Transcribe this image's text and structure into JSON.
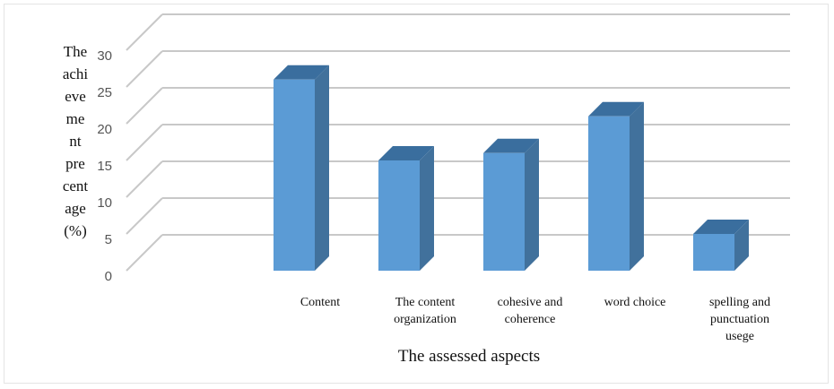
{
  "chart_data": {
    "type": "bar",
    "title": "",
    "xlabel": "The assessed aspects",
    "ylabel_lines": [
      "The",
      "achi",
      "eve",
      "me",
      "nt",
      "pre",
      "cent",
      "age",
      "(%)"
    ],
    "yticks": [
      "0",
      "5",
      "10",
      "15",
      "20",
      "25",
      "30"
    ],
    "ylim": [
      0,
      30
    ],
    "grid": true,
    "style": "3d-column",
    "categories": [
      [
        "Content"
      ],
      [
        "The content",
        "organization"
      ],
      [
        "cohesive and",
        "coherence"
      ],
      [
        "word choice"
      ],
      [
        "spelling and",
        "punctuation",
        "usege"
      ]
    ],
    "values": [
      26,
      15,
      16,
      21,
      5
    ],
    "colors": {
      "front": "#5b9bd5",
      "side": "#41719c",
      "top": "#3a6e9e",
      "grid": "#c8c8c8"
    }
  }
}
